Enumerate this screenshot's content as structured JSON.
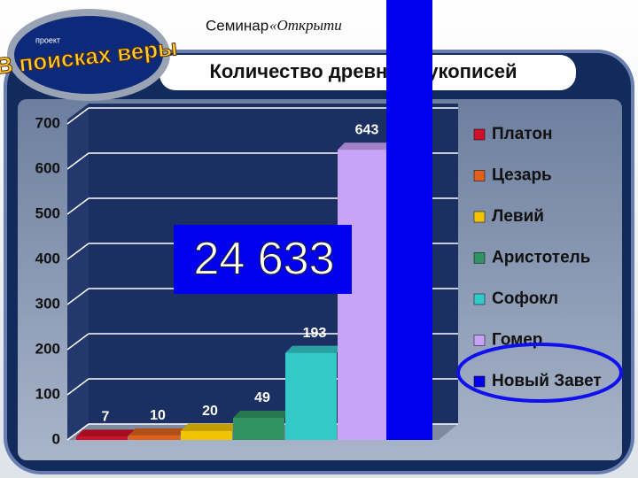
{
  "header": {
    "seminar": "Семинар",
    "seminar_name": "«Открыти",
    "logo_small": "проект",
    "logo": "В поисках веры"
  },
  "chart_data": {
    "type": "bar3d",
    "title": "Количество древних рукописей",
    "categories": [
      "Платон",
      "Цезарь",
      "Левий",
      "Аристотель",
      "Софокл",
      "Гомер",
      "Новый Завет"
    ],
    "values": [
      7,
      10,
      20,
      49,
      193,
      643,
      24633
    ],
    "value_labels": [
      "7",
      "10",
      "20",
      "49",
      "193",
      "643",
      "24 633"
    ],
    "colors": [
      "#d0102a",
      "#e0601a",
      "#f2c400",
      "#2f9462",
      "#33c9c9",
      "#c9a3f7",
      "#0000ee"
    ],
    "ylim": [
      0,
      700
    ],
    "yticks": [
      0,
      100,
      200,
      300,
      400,
      500,
      600,
      700
    ],
    "grid": true,
    "legend": "right"
  }
}
